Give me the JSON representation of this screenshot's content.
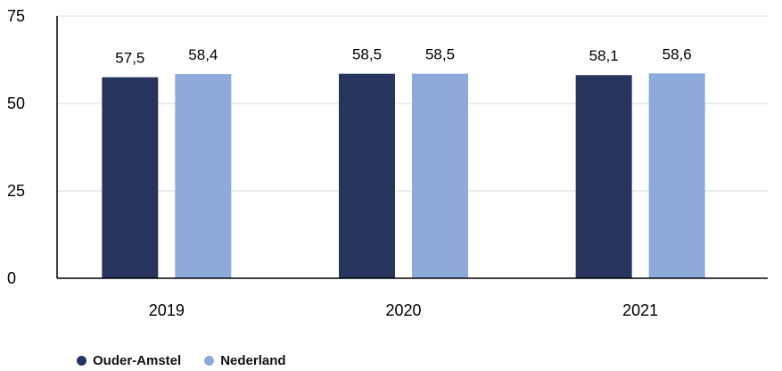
{
  "chart_data": {
    "type": "bar",
    "categories": [
      "2019",
      "2020",
      "2021"
    ],
    "series": [
      {
        "name": "Ouder-Amstel",
        "values": [
          57.5,
          58.5,
          58.1
        ],
        "labels": [
          "57,5",
          "58,5",
          "58,1"
        ],
        "color": "#26345e"
      },
      {
        "name": "Nederland",
        "values": [
          58.4,
          58.5,
          58.6
        ],
        "labels": [
          "58,4",
          "58,5",
          "58,6"
        ],
        "color": "#8eaadb"
      }
    ],
    "yticks": [
      0,
      25,
      50,
      75
    ],
    "ylim": [
      0,
      75
    ],
    "grid": true,
    "legend_position": "bottom-left"
  }
}
